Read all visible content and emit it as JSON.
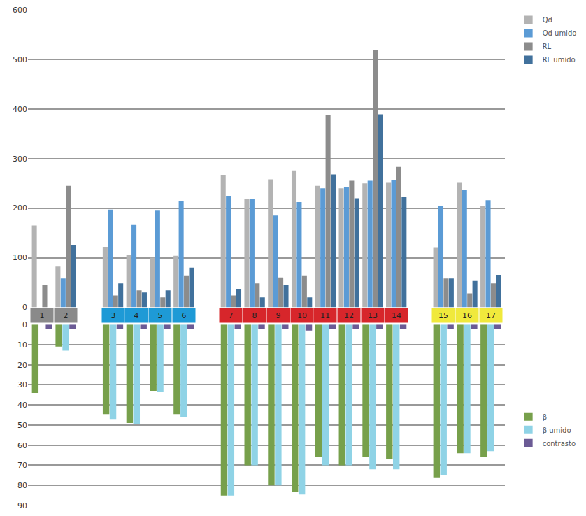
{
  "chart_data": {
    "type": "bar",
    "categories": [
      "1",
      "2",
      null,
      "3",
      "4",
      "5",
      "6",
      null,
      "7",
      "8",
      "9",
      "10",
      "11",
      "12",
      "13",
      "14",
      null,
      "15",
      "16",
      "17"
    ],
    "series": [
      {
        "name": "Qd",
        "color": "#b3b3b3",
        "values": [
          165,
          82,
          null,
          122,
          106,
          100,
          104,
          null,
          267,
          219,
          258,
          276,
          245,
          240,
          250,
          251,
          null,
          121,
          251,
          204
        ]
      },
      {
        "name": "Qd umido",
        "color": "#5b9bd5",
        "values": [
          null,
          58,
          null,
          197,
          166,
          195,
          215,
          null,
          225,
          219,
          185,
          212,
          240,
          243,
          255,
          257,
          null,
          205,
          236,
          216
        ]
      },
      {
        "name": "RL",
        "color": "#8c8c8c",
        "values": [
          45,
          245,
          null,
          24,
          34,
          20,
          63,
          null,
          24,
          48,
          60,
          63,
          387,
          255,
          519,
          283,
          null,
          58,
          28,
          48
        ]
      },
      {
        "name": "RL umido",
        "color": "#41719c",
        "values": [
          null,
          126,
          null,
          48,
          30,
          34,
          80,
          null,
          36,
          20,
          45,
          20,
          268,
          220,
          389,
          222,
          null,
          58,
          53,
          65
        ]
      },
      {
        "name": "β",
        "color": "#77a04b",
        "axis": "y2",
        "values": [
          34,
          11,
          null,
          44.5,
          49,
          33,
          44.5,
          null,
          85,
          70,
          80,
          83,
          66,
          70,
          66,
          67,
          null,
          76,
          64,
          66
        ]
      },
      {
        "name": "β umido",
        "color": "#8fd3e6",
        "axis": "y2",
        "values": [
          null,
          13,
          null,
          47,
          49.5,
          33.5,
          46,
          null,
          85,
          70,
          80,
          84.5,
          70,
          70,
          72,
          72,
          null,
          75,
          64,
          63
        ]
      },
      {
        "name": "contrasto",
        "color": "#6b5b95",
        "axis": "y2",
        "values": [
          2,
          2,
          null,
          2,
          2,
          2,
          2,
          null,
          2,
          2,
          2,
          3,
          2,
          2,
          2,
          2,
          null,
          2,
          2,
          2
        ]
      }
    ],
    "ylim": [
      0,
      600
    ],
    "yticks": [
      0,
      100,
      200,
      300,
      400,
      500,
      600
    ],
    "y2lim": [
      90,
      0
    ],
    "y2ticks": [
      0,
      10,
      20,
      30,
      40,
      50,
      60,
      70,
      80,
      90
    ],
    "grid": true,
    "legend": "right"
  }
}
